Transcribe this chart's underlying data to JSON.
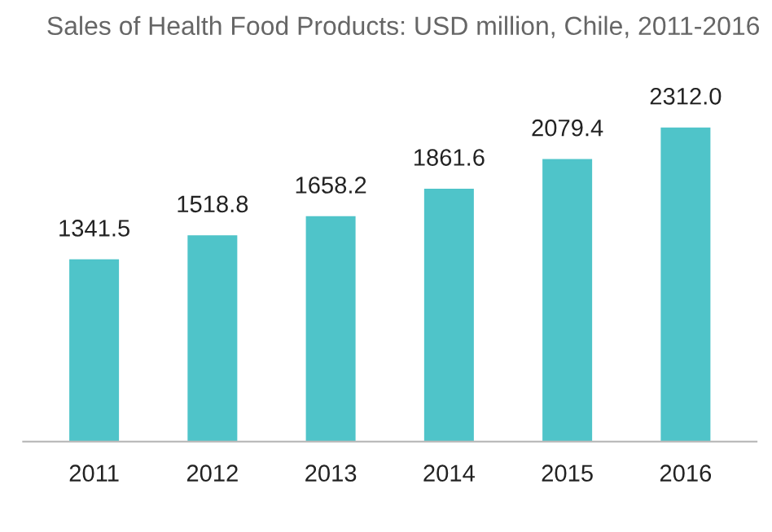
{
  "chart_data": {
    "type": "bar",
    "title": "Sales of Health Food Products: USD million, Chile, 2011-2016",
    "categories": [
      "2011",
      "2012",
      "2013",
      "2014",
      "2015",
      "2016"
    ],
    "values": [
      1341.5,
      1518.8,
      1658.2,
      1861.6,
      2079.4,
      2312.0
    ],
    "value_labels": [
      "1341.5",
      "1518.8",
      "1658.2",
      "1861.6",
      "2079.4",
      "2312.0"
    ],
    "color": "#4fc4c9",
    "grid": false,
    "legend": false,
    "tick_labels": "x"
  }
}
